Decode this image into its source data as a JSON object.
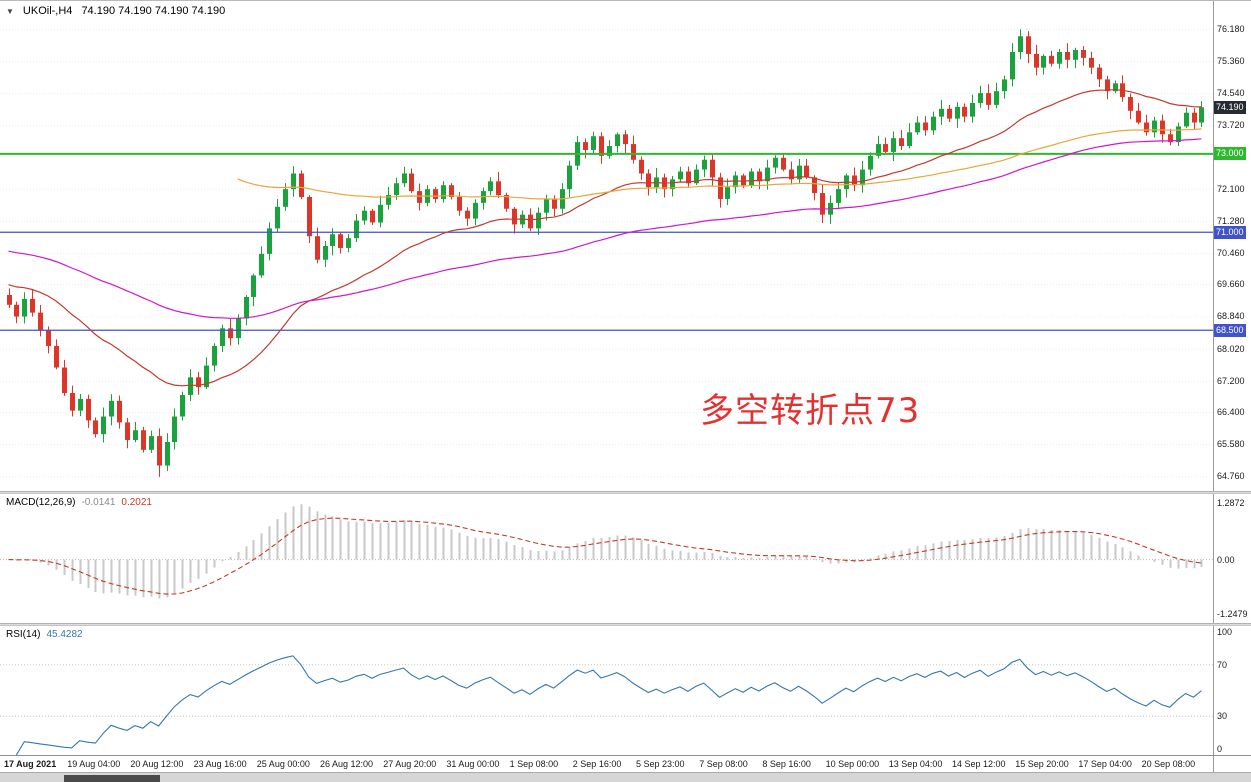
{
  "ui": {
    "menu_icon": "▼"
  },
  "time_axis": {
    "labels": [
      "17 Aug 2021",
      "19 Aug 04:00",
      "20 Aug 12:00",
      "23 Aug 16:00",
      "25 Aug 00:00",
      "26 Aug 12:00",
      "27 Aug 20:00",
      "31 Aug 00:00",
      "1 Sep 08:00",
      "2 Sep 16:00",
      "5 Sep 23:00",
      "7 Sep 08:00",
      "8 Sep 16:00",
      "10 Sep 00:00",
      "13 Sep 04:00",
      "14 Sep 12:00",
      "15 Sep 20:00",
      "17 Sep 04:00",
      "20 Sep 08:00"
    ]
  },
  "chart_data": [
    {
      "type": "candlestick",
      "symbol": "UKOil-",
      "timeframe": "H4",
      "symbol_timeframe": "UKOil-,H4",
      "quote_line": "74.190 74.190 74.190 74.190",
      "ylim": [
        64.4,
        76.9
      ],
      "bars_per_label": 8,
      "first_open": 69.4,
      "closes": [
        69.15,
        68.85,
        69.3,
        68.95,
        68.5,
        68.1,
        67.55,
        66.9,
        66.45,
        66.75,
        66.2,
        65.85,
        66.3,
        66.7,
        66.15,
        65.7,
        65.95,
        65.45,
        65.8,
        65.05,
        65.65,
        66.3,
        66.85,
        67.3,
        67.05,
        67.6,
        68.1,
        68.55,
        68.3,
        68.8,
        69.35,
        69.9,
        70.45,
        71.1,
        71.65,
        72.1,
        72.5,
        71.9,
        70.9,
        70.3,
        70.65,
        70.95,
        70.6,
        70.85,
        71.3,
        71.55,
        71.25,
        71.7,
        71.95,
        72.25,
        72.5,
        72.05,
        71.75,
        72.1,
        71.85,
        72.2,
        71.9,
        71.55,
        71.35,
        71.75,
        72.05,
        72.3,
        71.95,
        71.6,
        71.2,
        71.45,
        71.1,
        71.5,
        71.85,
        71.6,
        72.1,
        72.7,
        73.3,
        73.1,
        73.45,
        72.95,
        73.2,
        73.5,
        73.25,
        72.85,
        72.5,
        72.15,
        72.4,
        72.1,
        72.35,
        72.55,
        72.25,
        72.6,
        72.85,
        72.4,
        71.85,
        72.15,
        72.45,
        72.2,
        72.55,
        72.3,
        72.65,
        72.9,
        72.6,
        72.35,
        72.7,
        72.4,
        72.0,
        71.45,
        71.75,
        72.1,
        72.45,
        72.2,
        72.6,
        72.95,
        73.25,
        73.05,
        73.4,
        73.2,
        73.55,
        73.8,
        73.6,
        73.95,
        74.15,
        73.9,
        74.2,
        73.95,
        74.3,
        74.55,
        74.25,
        74.6,
        74.9,
        75.6,
        76.0,
        75.55,
        75.2,
        75.5,
        75.3,
        75.6,
        75.4,
        75.65,
        75.45,
        75.2,
        74.9,
        74.6,
        74.8,
        74.45,
        74.1,
        73.8,
        73.55,
        73.85,
        73.5,
        73.3,
        73.7,
        74.05,
        73.8,
        74.19
      ],
      "overrides": [
        {
          "index": 19,
          "low": 64.76
        },
        {
          "index": 128,
          "high": 76.18
        }
      ],
      "bull_color": "#1aa23c",
      "bear_color": "#dd3528",
      "y_axis_labels": [
        "76.180",
        "75.360",
        "74.540",
        "73.720",
        "72.100",
        "71.280",
        "70.460",
        "69.660",
        "68.840",
        "68.020",
        "67.200",
        "66.400",
        "65.580",
        "64.760"
      ],
      "price_badges": [
        {
          "label": "74.190",
          "value": 74.19,
          "bg": "#262b33"
        },
        {
          "label": "73.000",
          "value": 73.0,
          "bg": "#2eb82e"
        },
        {
          "label": "71.000",
          "value": 71.0,
          "bg": "#4052cc"
        },
        {
          "label": "68.500",
          "value": 68.5,
          "bg": "#4052cc"
        }
      ],
      "hlines": [
        {
          "value": 73.0,
          "color": "#2eb82e",
          "width": 2
        },
        {
          "value": 71.0,
          "color": "#4052cc",
          "width": 1.3
        },
        {
          "value": 68.5,
          "color": "#4052cc",
          "width": 1.3
        }
      ],
      "moving_averages": [
        {
          "name": "ma-fast-red",
          "period": 28,
          "seed": 69.7,
          "color": "#c33a2c",
          "start_index": 0
        },
        {
          "name": "ma-mid-magenta",
          "period": 85,
          "seed": 70.55,
          "color": "#d414cf",
          "start_index": 0
        },
        {
          "name": "ma-slow-orange",
          "period": 80,
          "seed": 72.45,
          "color": "#e9a63c",
          "start_index": 29
        }
      ],
      "annotation": {
        "text": "多空转折点73",
        "color": "#e53030"
      }
    },
    {
      "type": "macd",
      "label_name": "MACD(12,26,9)",
      "value_main": "-0.0141",
      "value_signal": "0.2021",
      "params": {
        "fast": 12,
        "slow": 26,
        "signal": 9
      },
      "ylim": [
        -1.45,
        1.5
      ],
      "y_axis_labels": [
        {
          "text": "1.2872",
          "value": 1.2872
        },
        {
          "text": "0.00",
          "value": 0
        },
        {
          "text": "-1.2479",
          "value": -1.2479
        }
      ],
      "histogram_color": "#c8c8c8",
      "signal_color": "#c33a2c"
    },
    {
      "type": "rsi",
      "label_name": "RSI(14)",
      "value": "45.4282",
      "period": 14,
      "ylim": [
        0,
        100
      ],
      "levels": [
        70,
        30
      ],
      "y_axis_labels": [
        {
          "text": "100",
          "value": 100
        },
        {
          "text": "70",
          "value": 70
        },
        {
          "text": "30",
          "value": 30
        },
        {
          "text": "0",
          "value": 0
        }
      ],
      "line_color": "#3577ae"
    }
  ]
}
